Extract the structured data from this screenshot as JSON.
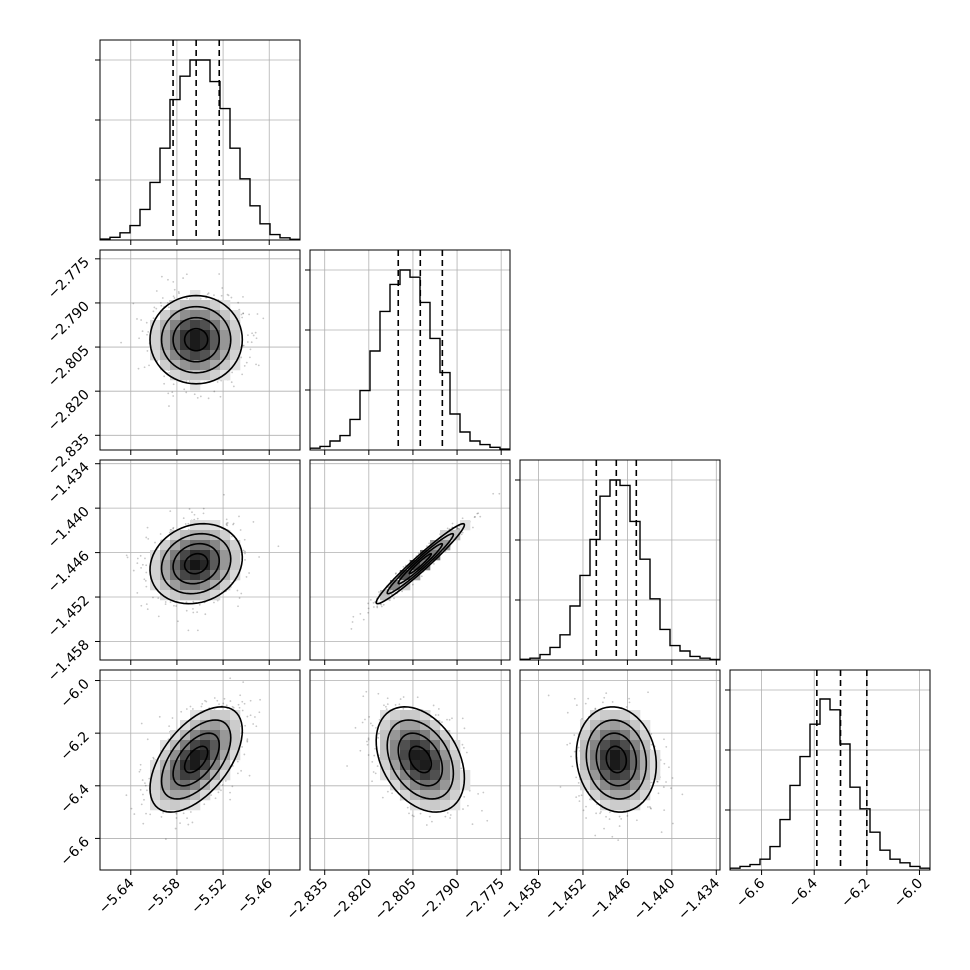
{
  "chart_data": {
    "type": "corner",
    "n_params": 4,
    "grid": true,
    "parameters": [
      {
        "ticks": [
          -5.64,
          -5.58,
          -5.52,
          -5.46
        ],
        "tick_labels": [
          "−5.64",
          "−5.58",
          "−5.52",
          "−5.46"
        ],
        "range": [
          -5.68,
          -5.42
        ],
        "mean": -5.555,
        "sd": 0.03,
        "quantiles": [
          -5.585,
          -5.555,
          -5.525
        ]
      },
      {
        "ticks": [
          -2.835,
          -2.82,
          -2.805,
          -2.79,
          -2.775
        ],
        "tick_labels": [
          "−2.835",
          "−2.820",
          "−2.805",
          "−2.790",
          "−2.775"
        ],
        "range": [
          -2.84,
          -2.772
        ],
        "mean": -2.8025,
        "sd": 0.0075,
        "quantiles": [
          -2.81,
          -2.8025,
          -2.795
        ]
      },
      {
        "ticks": [
          -1.458,
          -1.452,
          -1.446,
          -1.44,
          -1.434
        ],
        "tick_labels": [
          "−1.458",
          "−1.452",
          "−1.446",
          "−1.440",
          "−1.434"
        ],
        "range": [
          -1.4605,
          -1.4335
        ],
        "mean": -1.4475,
        "sd": 0.0027,
        "quantiles": [
          -1.4502,
          -1.4475,
          -1.4448
        ]
      },
      {
        "ticks": [
          -6.6,
          -6.4,
          -6.2,
          -6.0
        ],
        "tick_labels": [
          "−6.6",
          "−6.4",
          "−6.2",
          "−6.0"
        ],
        "range": [
          -6.72,
          -5.96
        ],
        "mean": -6.3,
        "sd": 0.1,
        "quantiles": [
          -6.39,
          -6.3,
          -6.2
        ]
      }
    ],
    "correlations": [
      [
        1.0,
        0.0,
        0.15,
        0.55
      ],
      [
        0.0,
        1.0,
        0.97,
        -0.35
      ],
      [
        0.15,
        0.97,
        1.0,
        -0.1
      ],
      [
        0.55,
        -0.35,
        -0.1,
        1.0
      ]
    ],
    "histogram_y": {
      "p0": [
        0.005,
        0.015,
        0.04,
        0.08,
        0.17,
        0.32,
        0.51,
        0.78,
        0.91,
        1.0,
        1.0,
        0.88,
        0.73,
        0.51,
        0.34,
        0.19,
        0.09,
        0.03,
        0.012,
        0.004
      ],
      "p1": [
        0.01,
        0.02,
        0.05,
        0.08,
        0.17,
        0.33,
        0.55,
        0.77,
        0.92,
        1.0,
        0.96,
        0.82,
        0.62,
        0.43,
        0.2,
        0.1,
        0.05,
        0.03,
        0.015,
        0.005
      ],
      "p2": [
        0.004,
        0.01,
        0.03,
        0.07,
        0.14,
        0.3,
        0.47,
        0.67,
        0.91,
        1.0,
        0.97,
        0.77,
        0.56,
        0.34,
        0.17,
        0.08,
        0.05,
        0.02,
        0.01,
        0.003
      ],
      "p3": [
        0.01,
        0.02,
        0.03,
        0.06,
        0.13,
        0.28,
        0.47,
        0.63,
        0.81,
        0.95,
        0.89,
        0.7,
        0.46,
        0.34,
        0.21,
        0.11,
        0.06,
        0.04,
        0.02,
        0.01
      ]
    }
  }
}
